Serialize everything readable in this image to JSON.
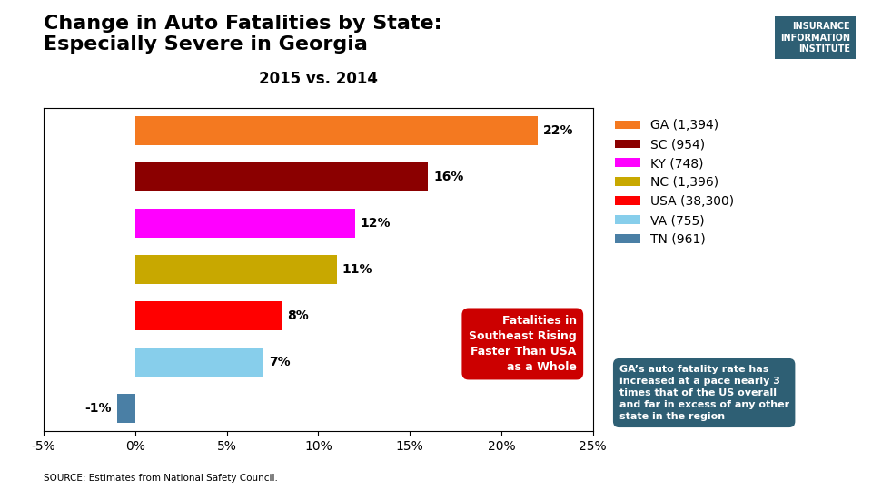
{
  "chart_data": {
    "type": "bar",
    "orientation": "horizontal",
    "title": "Change in Auto Fatalities by State:\nEspecially Severe in Georgia",
    "subtitle": "2015 vs. 2014",
    "categories": [
      "GA",
      "SC",
      "KY",
      "NC",
      "USA",
      "VA",
      "TN"
    ],
    "values": [
      22,
      16,
      12,
      11,
      8,
      7,
      -1
    ],
    "value_labels": [
      "22%",
      "16%",
      "12%",
      "11%",
      "8%",
      "7%",
      "-1%"
    ],
    "data_labels": true,
    "colors": [
      "#f47920",
      "#8b0000",
      "#ff00ff",
      "#c8a800",
      "#ff0000",
      "#87ceeb",
      "#4a7fa5"
    ],
    "legend_labels": [
      "GA (1,394)",
      "SC (954)",
      "KY (748)",
      "NC (1,396)",
      "USA (38,300)",
      "VA (755)",
      "TN (961)"
    ],
    "legend": "upper left",
    "xlim": [
      -5,
      25
    ],
    "xticks": [
      {
        "value": -5,
        "label": "-5%"
      },
      {
        "value": 0,
        "label": "0%"
      },
      {
        "value": 5,
        "label": "5%"
      },
      {
        "value": 10,
        "label": "10%"
      },
      {
        "value": 15,
        "label": "15%"
      },
      {
        "value": 20,
        "label": "20%"
      },
      {
        "value": 25,
        "label": "25%"
      }
    ],
    "tick_labels": "x",
    "annotations": [
      {
        "text": "GA’s auto fatality rate has\nincreased at a pace nearly 3\ntimes that of the US overall\nand far in excess of any other\nstate in the region",
        "color": "#2e5f74"
      },
      {
        "text": "Fatalities in\nSoutheast Rising\nFaster Than USA\nas a Whole",
        "color": "#cc0000"
      },
      {
        "text": "INSURANCE\nINFORMATION\nINSTITUTE",
        "color": "#2e5f74"
      }
    ],
    "source": "SOURCE: Estimates from National Safety Council."
  }
}
